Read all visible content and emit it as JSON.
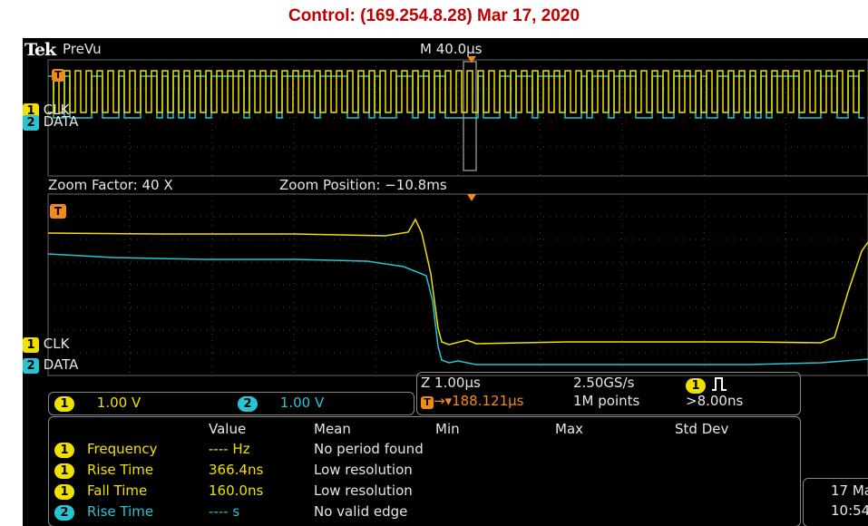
{
  "title": "Control: (169.254.8.28)    Mar 17, 2020",
  "header": {
    "brand": "Tek",
    "mode": "PreVu",
    "timebase": "M 40.0µs"
  },
  "overview": {
    "ch1_label": "CLK",
    "ch2_label": "DATA",
    "ch1_num": "1",
    "ch2_num": "2",
    "trigger_marker": "T"
  },
  "zoom": {
    "factor": "Zoom Factor: 40 X",
    "position": "Zoom Position: −10.8ms"
  },
  "detail": {
    "ch1_label": "CLK",
    "ch2_label": "DATA",
    "ch1_num": "1",
    "ch2_num": "2",
    "trigger_marker": "T"
  },
  "channels": [
    {
      "num": "1",
      "scale": "1.00 V",
      "color": "#f0e000"
    },
    {
      "num": "2",
      "scale": "1.00 V",
      "color": "#27c5d4"
    }
  ],
  "acquisition": {
    "zoom_time": "Z 1.00µs",
    "trigger_pos": "→▾188.121µs",
    "sample_rate": "2.50GS/s",
    "record": "1M points",
    "trigger_ch": "1",
    "trigger_level": ">8.00ns"
  },
  "measurements": {
    "headers": [
      "Value",
      "Mean",
      "Min",
      "Max",
      "Std Dev"
    ],
    "rows": [
      {
        "ch": "1",
        "name": "Frequency",
        "value": "---- Hz",
        "mean": "No period found"
      },
      {
        "ch": "1",
        "name": "Rise Time",
        "value": "366.4ns",
        "mean": "Low resolution"
      },
      {
        "ch": "1",
        "name": "Fall Time",
        "value": "160.0ns",
        "mean": "Low resolution"
      },
      {
        "ch": "2",
        "name": "Rise Time",
        "value": "---- s",
        "mean": "No valid edge"
      }
    ]
  },
  "datetime": {
    "date": "17 Ma",
    "time": "10:54"
  },
  "colors": {
    "ch1": "#f0e000",
    "ch2": "#27c5d4",
    "trigger": "#f28a1b",
    "grid": "#4a4a4a"
  }
}
